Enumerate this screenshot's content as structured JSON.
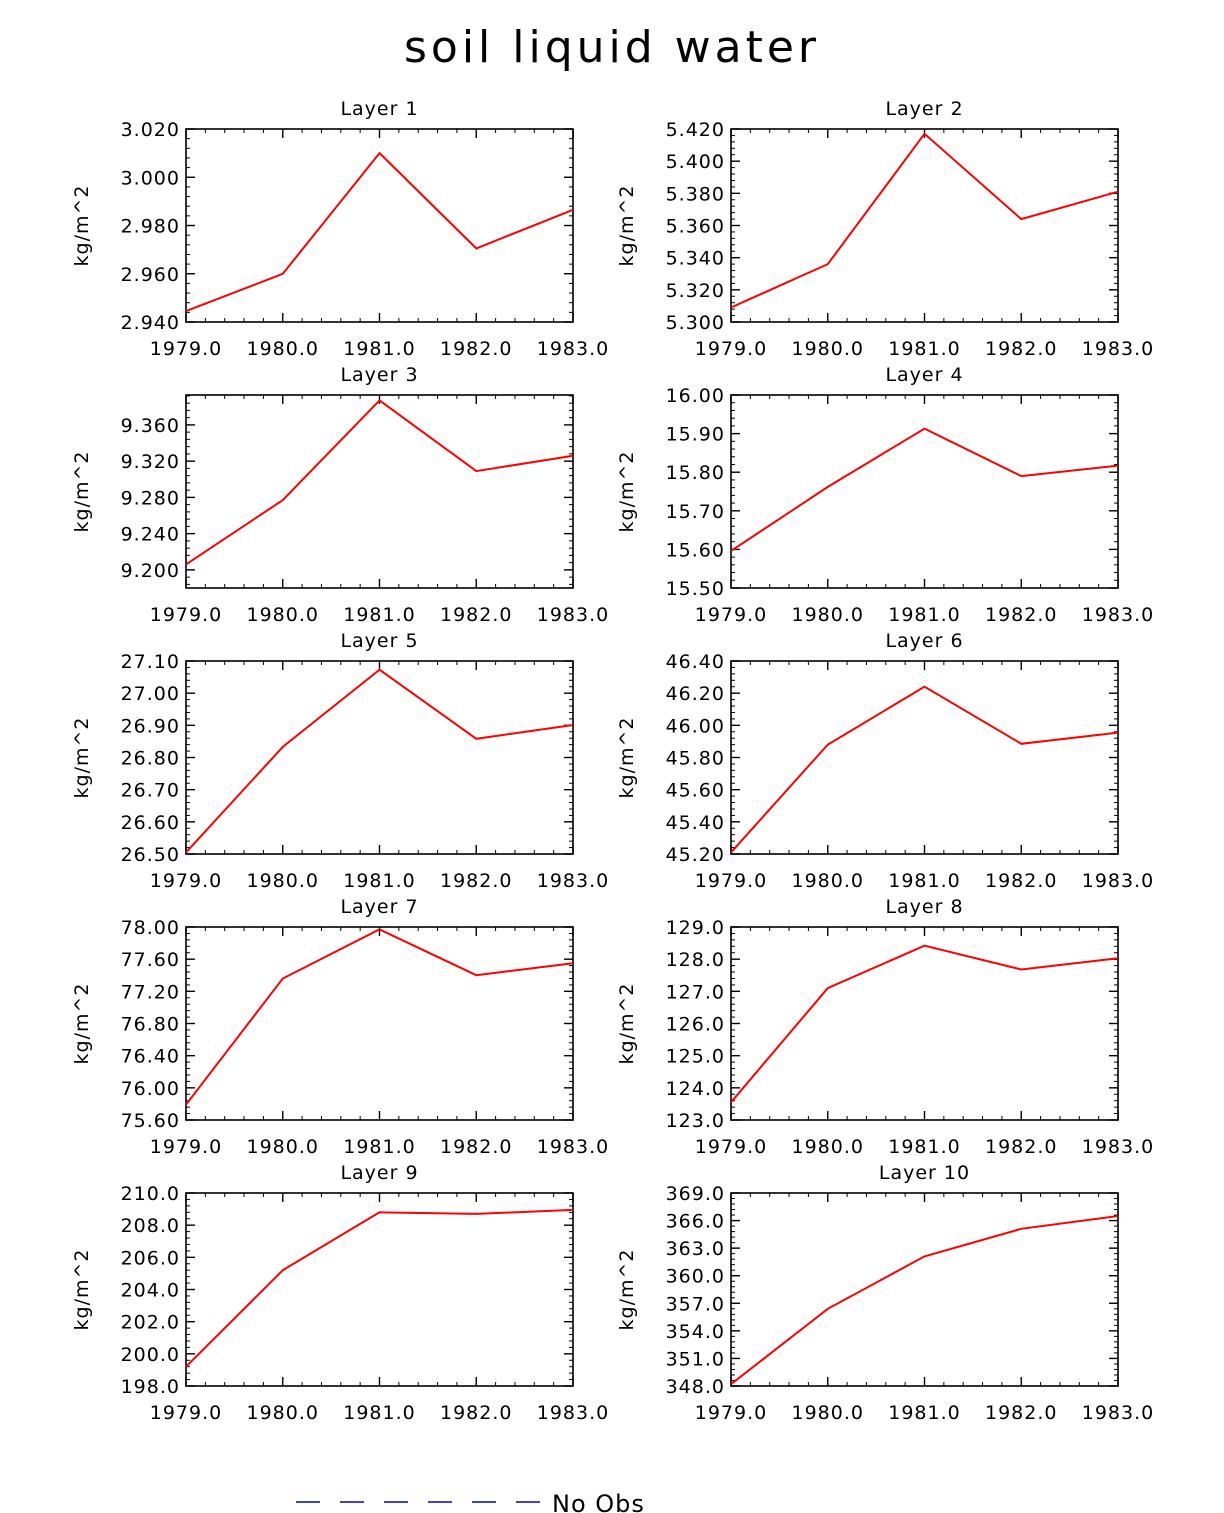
{
  "figure": {
    "title": "soil liquid water",
    "line_color": "#ff0000",
    "legend_color": "#0000cc"
  },
  "legend": {
    "label": "No Obs",
    "style": "dashed"
  },
  "chart_data": [
    {
      "type": "line",
      "title": "Layer 1",
      "ylabel": "kg/m^2",
      "x": [
        1979,
        1980,
        1981,
        1982,
        1983
      ],
      "y": [
        2.9445,
        2.96,
        3.01,
        2.9705,
        2.9865
      ],
      "ylim": [
        2.94,
        3.02
      ],
      "yticks": [
        "2.940",
        "2.960",
        "2.980",
        "3.000",
        "3.020"
      ],
      "xticks": [
        "1979.0",
        "1980.0",
        "1981.0",
        "1982.0",
        "1983.0"
      ],
      "series_name": "Layer 1"
    },
    {
      "type": "line",
      "title": "Layer 2",
      "ylabel": "kg/m^2",
      "x": [
        1979,
        1980,
        1981,
        1982,
        1983
      ],
      "y": [
        5.309,
        5.336,
        5.417,
        5.364,
        5.381
      ],
      "ylim": [
        5.3,
        5.42
      ],
      "yticks": [
        "5.300",
        "5.320",
        "5.340",
        "5.360",
        "5.380",
        "5.400",
        "5.420"
      ],
      "xticks": [
        "1979.0",
        "1980.0",
        "1981.0",
        "1982.0",
        "1983.0"
      ],
      "series_name": "Layer 2"
    },
    {
      "type": "line",
      "title": "Layer 3",
      "ylabel": "kg/m^2",
      "x": [
        1979,
        1980,
        1981,
        1982,
        1983
      ],
      "y": [
        9.206,
        9.277,
        9.387,
        9.309,
        9.326
      ],
      "ylim": [
        9.18,
        9.393
      ],
      "yticks": [
        "9.200",
        "9.240",
        "9.280",
        "9.320",
        "9.360"
      ],
      "xticks": [
        "1979.0",
        "1980.0",
        "1981.0",
        "1982.0",
        "1983.0"
      ],
      "series_name": "Layer 3"
    },
    {
      "type": "line",
      "title": "Layer 4",
      "ylabel": "kg/m^2",
      "x": [
        1979,
        1980,
        1981,
        1982,
        1983
      ],
      "y": [
        15.596,
        15.762,
        15.913,
        15.79,
        15.817
      ],
      "ylim": [
        15.5,
        16.0
      ],
      "yticks": [
        "15.50",
        "15.60",
        "15.70",
        "15.80",
        "15.90",
        "16.00"
      ],
      "xticks": [
        "1979.0",
        "1980.0",
        "1981.0",
        "1982.0",
        "1983.0"
      ],
      "series_name": "Layer 4"
    },
    {
      "type": "line",
      "title": "Layer 5",
      "ylabel": "kg/m^2",
      "x": [
        1979,
        1980,
        1981,
        1982,
        1983
      ],
      "y": [
        26.505,
        26.833,
        27.073,
        26.858,
        26.901
      ],
      "ylim": [
        26.5,
        27.1
      ],
      "yticks": [
        "26.50",
        "26.60",
        "26.70",
        "26.80",
        "26.90",
        "27.00",
        "27.10"
      ],
      "xticks": [
        "1979.0",
        "1980.0",
        "1981.0",
        "1982.0",
        "1983.0"
      ],
      "series_name": "Layer 5"
    },
    {
      "type": "line",
      "title": "Layer 6",
      "ylabel": "kg/m^2",
      "x": [
        1979,
        1980,
        1981,
        1982,
        1983
      ],
      "y": [
        45.21,
        45.88,
        46.24,
        45.885,
        45.955
      ],
      "ylim": [
        45.2,
        46.4
      ],
      "yticks": [
        "45.20",
        "45.40",
        "45.60",
        "45.80",
        "46.00",
        "46.20",
        "46.40"
      ],
      "xticks": [
        "1979.0",
        "1980.0",
        "1981.0",
        "1982.0",
        "1983.0"
      ],
      "series_name": "Layer 6"
    },
    {
      "type": "line",
      "title": "Layer 7",
      "ylabel": "kg/m^2",
      "x": [
        1979,
        1980,
        1981,
        1982,
        1983
      ],
      "y": [
        75.79,
        77.36,
        77.97,
        77.4,
        77.55
      ],
      "ylim": [
        75.6,
        78.0
      ],
      "yticks": [
        "75.60",
        "76.00",
        "76.40",
        "76.80",
        "77.20",
        "77.60",
        "78.00"
      ],
      "xticks": [
        "1979.0",
        "1980.0",
        "1981.0",
        "1982.0",
        "1983.0"
      ],
      "series_name": "Layer 7"
    },
    {
      "type": "line",
      "title": "Layer 8",
      "ylabel": "kg/m^2",
      "x": [
        1979,
        1980,
        1981,
        1982,
        1983
      ],
      "y": [
        123.55,
        127.1,
        128.42,
        127.68,
        128.03
      ],
      "ylim": [
        123.0,
        129.0
      ],
      "yticks": [
        "123.0",
        "124.0",
        "125.0",
        "126.0",
        "127.0",
        "128.0",
        "129.0"
      ],
      "xticks": [
        "1979.0",
        "1980.0",
        "1981.0",
        "1982.0",
        "1983.0"
      ],
      "series_name": "Layer 8"
    },
    {
      "type": "line",
      "title": "Layer 9",
      "ylabel": "kg/m^2",
      "x": [
        1979,
        1980,
        1981,
        1982,
        1983
      ],
      "y": [
        199.2,
        205.2,
        208.8,
        208.7,
        208.95
      ],
      "ylim": [
        198.0,
        210.0
      ],
      "yticks": [
        "198.0",
        "200.0",
        "202.0",
        "204.0",
        "206.0",
        "208.0",
        "210.0"
      ],
      "xticks": [
        "1979.0",
        "1980.0",
        "1981.0",
        "1982.0",
        "1983.0"
      ],
      "series_name": "Layer 9"
    },
    {
      "type": "line",
      "title": "Layer 10",
      "ylabel": "kg/m^2",
      "x": [
        1979,
        1980,
        1981,
        1982,
        1983
      ],
      "y": [
        348.2,
        356.4,
        362.1,
        365.1,
        366.5
      ],
      "ylim": [
        348.0,
        369.0
      ],
      "yticks": [
        "348.0",
        "351.0",
        "354.0",
        "357.0",
        "360.0",
        "363.0",
        "366.0",
        "369.0"
      ],
      "xticks": [
        "1979.0",
        "1980.0",
        "1981.0",
        "1982.0",
        "1983.0"
      ],
      "series_name": "Layer 10"
    }
  ]
}
